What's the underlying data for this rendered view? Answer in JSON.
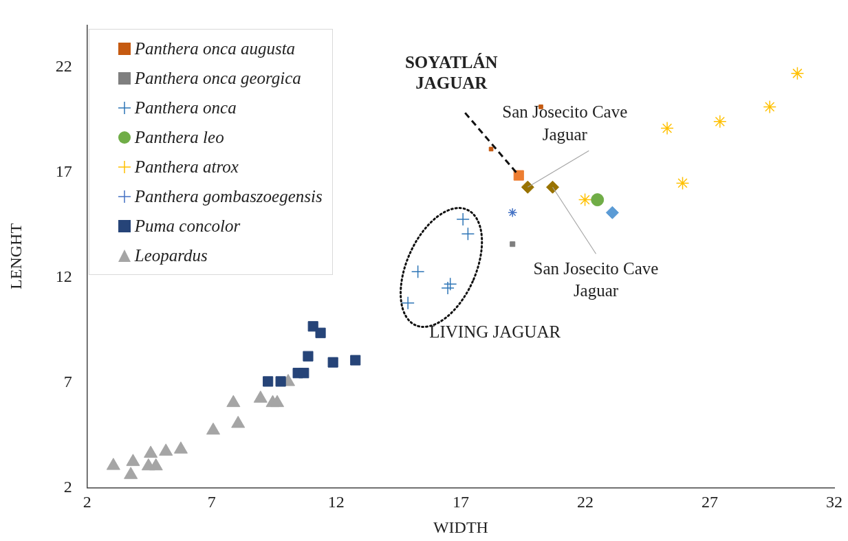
{
  "chart_data": {
    "type": "scatter",
    "xlabel": "WIDTH",
    "ylabel": "LENGHT",
    "xlim": [
      2,
      32
    ],
    "xticks": [
      2,
      7,
      12,
      17,
      22,
      27,
      32
    ],
    "ylim": [
      2,
      24
    ],
    "yticks": [
      2,
      7,
      12,
      17,
      22
    ],
    "grid": false,
    "legend": "top left",
    "series": [
      {
        "name": "Panthera onca augusta",
        "color": "#c55a11",
        "marker": "square",
        "x": [
          20.22,
          18.22
        ],
        "values": [
          20.11,
          18.1
        ]
      },
      {
        "name": "Panthera onca georgica",
        "color": "#7f7f7f",
        "marker": "square",
        "x": [
          19.08
        ],
        "values": [
          13.58
        ]
      },
      {
        "name": "Panthera onca",
        "color": "#2e75b6",
        "marker": "cross",
        "x": [
          17.09,
          17.29,
          15.28,
          16.58,
          16.48,
          14.88
        ],
        "values": [
          14.76,
          14.07,
          12.27,
          11.68,
          11.49,
          10.78
        ]
      },
      {
        "name": "Panthera leo",
        "color": "#70ad47",
        "marker": "circle",
        "x": [
          22.49
        ],
        "values": [
          15.69
        ]
      },
      {
        "name": "Panthera atrox",
        "color": "#ffc000",
        "marker": "cross",
        "x": [
          21.99,
          25.29,
          27.41,
          29.41,
          30.52,
          25.91
        ],
        "values": [
          15.69,
          19.09,
          19.41,
          20.11,
          21.7,
          16.48
        ]
      },
      {
        "name": "Panthera gombaszoegensis",
        "color": "#4472c4",
        "marker": "cross",
        "x": [
          19.08
        ],
        "values": [
          15.08
        ]
      },
      {
        "name": "Puma concolor",
        "color": "#264478",
        "marker": "square",
        "x": [
          11.07,
          11.37,
          10.87,
          11.87,
          12.77,
          10.46,
          10.7,
          9.26,
          9.77
        ],
        "values": [
          9.67,
          9.36,
          8.25,
          7.96,
          8.06,
          7.45,
          7.45,
          7.05,
          7.05
        ]
      },
      {
        "name": "Leopardus",
        "color": "#a5a5a5",
        "marker": "triangle",
        "x": [
          3.05,
          3.75,
          3.84,
          4.46,
          4.76,
          4.55,
          5.16,
          5.76,
          7.06,
          8.06,
          7.87,
          8.96,
          9.45,
          9.63,
          10.07
        ],
        "values": [
          3.04,
          2.61,
          3.23,
          3.02,
          3.02,
          3.62,
          3.72,
          3.82,
          4.72,
          5.04,
          6.03,
          6.24,
          6.03,
          6.03,
          7.03
        ]
      },
      {
        "color": "#ed7d31",
        "marker": "square",
        "x": [
          19.33
        ],
        "values": [
          16.85
        ]
      },
      {
        "color": "#997300",
        "marker": "diamond",
        "x": [
          19.69,
          20.69
        ],
        "values": [
          16.29,
          16.29
        ]
      },
      {
        "color": "#5b9bd5",
        "marker": "diamond",
        "x": [
          23.09
        ],
        "values": [
          15.08
        ]
      }
    ],
    "annotations": [
      {
        "text": "SOYATLÁN JAGUAR",
        "x": 19.33,
        "y": 16.85
      },
      {
        "text": "San Josecito Cave Jaguar",
        "x": 19.69,
        "y": 16.29
      },
      {
        "text": "San Josecito Cave Jaguar",
        "x": 20.69,
        "y": 16.29
      },
      "LIVING JAGUAR"
    ]
  }
}
